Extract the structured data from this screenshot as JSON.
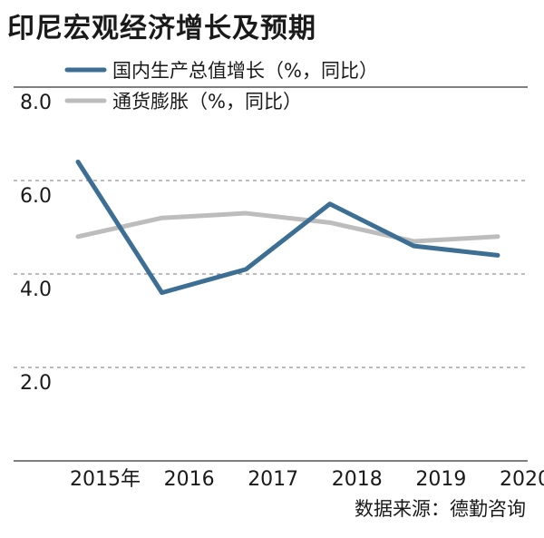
{
  "title": "印尼宏观经济增长及预期",
  "source": "数据来源：德勤咨询",
  "chart_data": {
    "type": "line",
    "categories": [
      "2015年",
      "2016",
      "2017",
      "2018",
      "2019",
      "2020"
    ],
    "series": [
      {
        "name": "国内生产总值增长（%，同比）",
        "color": "#3d6f94",
        "values": [
          6.4,
          3.6,
          4.1,
          5.5,
          4.6,
          4.4
        ]
      },
      {
        "name": "通货膨胀（%，同比）",
        "color": "#bdbdbd",
        "values": [
          4.8,
          5.2,
          5.3,
          5.1,
          4.7,
          4.8
        ]
      }
    ],
    "yticks": [
      "8.0",
      "6.0",
      "4.0",
      "2.0"
    ],
    "ylim": [
      0,
      8
    ],
    "grid": true,
    "legend": "top-left"
  }
}
